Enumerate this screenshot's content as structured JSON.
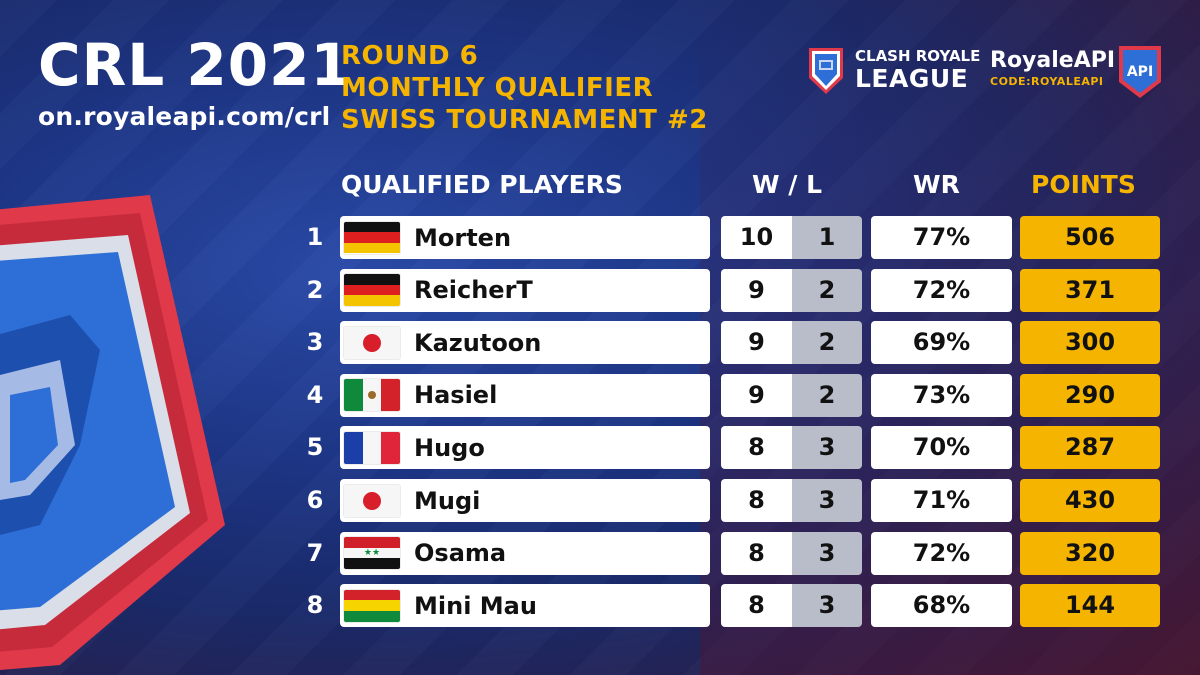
{
  "header": {
    "title": "CRL 2021",
    "url": "on.royaleapi.com/crl",
    "event_lines": [
      "ROUND 6",
      "MONTHLY QUALIFIER",
      "SWISS TOURNAMENT #2"
    ]
  },
  "crl_logo": {
    "line1": "CLASH ROYALE",
    "line2": "LEAGUE",
    "icon": "crl-crown-logo-icon"
  },
  "api_logo": {
    "name": "RoyaleAPI",
    "code": "CODE:ROYALEAPI",
    "badge_text": "API"
  },
  "table": {
    "headers": {
      "players": "QUALIFIED PLAYERS",
      "wl": "W / L",
      "wr": "WR",
      "points": "POINTS"
    },
    "rows": [
      {
        "rank": "1",
        "flag": "germany-flag",
        "name": "Morten",
        "wins": "10",
        "losses": "1",
        "wr": "77%",
        "points": "506"
      },
      {
        "rank": "2",
        "flag": "germany-flag",
        "name": "ReicherT",
        "wins": "9",
        "losses": "2",
        "wr": "72%",
        "points": "371"
      },
      {
        "rank": "3",
        "flag": "japan-flag",
        "name": "Kazutoon",
        "wins": "9",
        "losses": "2",
        "wr": "69%",
        "points": "300"
      },
      {
        "rank": "4",
        "flag": "mexico-flag",
        "name": "Hasiel",
        "wins": "9",
        "losses": "2",
        "wr": "73%",
        "points": "290"
      },
      {
        "rank": "5",
        "flag": "france-flag",
        "name": "Hugo",
        "wins": "8",
        "losses": "3",
        "wr": "70%",
        "points": "287"
      },
      {
        "rank": "6",
        "flag": "japan-flag",
        "name": "Mugi",
        "wins": "8",
        "losses": "3",
        "wr": "71%",
        "points": "430"
      },
      {
        "rank": "7",
        "flag": "syria-flag",
        "name": "Osama",
        "wins": "8",
        "losses": "3",
        "wr": "72%",
        "points": "320"
      },
      {
        "rank": "8",
        "flag": "bolivia-flag",
        "name": "Mini Mau",
        "wins": "8",
        "losses": "3",
        "wr": "68%",
        "points": "144"
      }
    ]
  },
  "colors": {
    "accent": "#f5b400",
    "background": "#1d3585",
    "loss_cell": "#b9bdc9"
  }
}
